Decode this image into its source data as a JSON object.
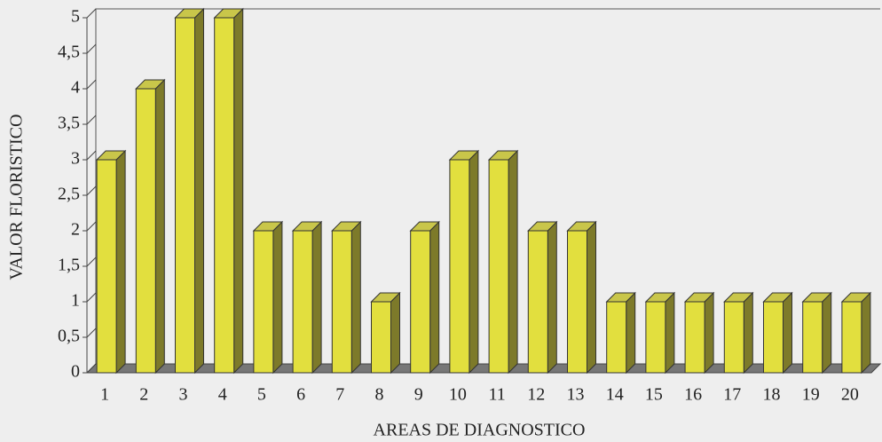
{
  "chart_data": {
    "type": "bar3d",
    "categories": [
      "1",
      "2",
      "3",
      "4",
      "5",
      "6",
      "7",
      "8",
      "9",
      "10",
      "11",
      "12",
      "13",
      "14",
      "15",
      "16",
      "17",
      "18",
      "19",
      "20"
    ],
    "values": [
      3,
      4,
      5,
      5,
      2,
      2,
      2,
      1,
      2,
      3,
      3,
      2,
      2,
      1,
      1,
      1,
      1,
      1,
      1,
      1
    ],
    "color": "#e2df3e",
    "ylim": [
      0,
      5
    ],
    "yticks": [
      0,
      {
        "value": 0.5,
        "label": "0,5"
      },
      1,
      {
        "value": 1.5,
        "label": "1,5"
      },
      2,
      {
        "value": 2.5,
        "label": "2,5"
      },
      3,
      {
        "value": 3.5,
        "label": "3,5"
      },
      4,
      {
        "value": 4.5,
        "label": "4,5"
      },
      5
    ],
    "x_label": "AREAS DE DIAGNOSTICO",
    "y_label": "VALOR FLORISTICO"
  }
}
